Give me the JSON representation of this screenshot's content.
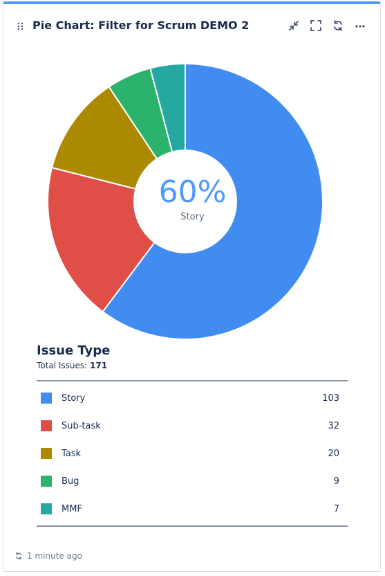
{
  "header": {
    "title": "Pie Chart: Filter for Scrum DEMO 2",
    "actions": [
      "minimize-icon",
      "fullscreen-icon",
      "refresh-icon",
      "more-icon"
    ]
  },
  "center": {
    "percent": "60%",
    "label": "Story"
  },
  "legend": {
    "title": "Issue Type",
    "total_label": "Total Issues:",
    "total_value": "171"
  },
  "footer": {
    "updated": "1 minute ago"
  },
  "colors": {
    "accent": "#4c9aff",
    "Story": "#418cf0",
    "Sub-task": "#e04f47",
    "Task": "#ac8a00",
    "Bug": "#2bb36b",
    "MMF": "#24a8a2"
  },
  "chart_data": {
    "type": "pie",
    "categories": [
      "Story",
      "Sub-task",
      "Task",
      "Bug",
      "MMF"
    ],
    "values": [
      103,
      32,
      20,
      9,
      7
    ],
    "title": "Issue Type",
    "donut": true,
    "highlighted": "Story"
  }
}
